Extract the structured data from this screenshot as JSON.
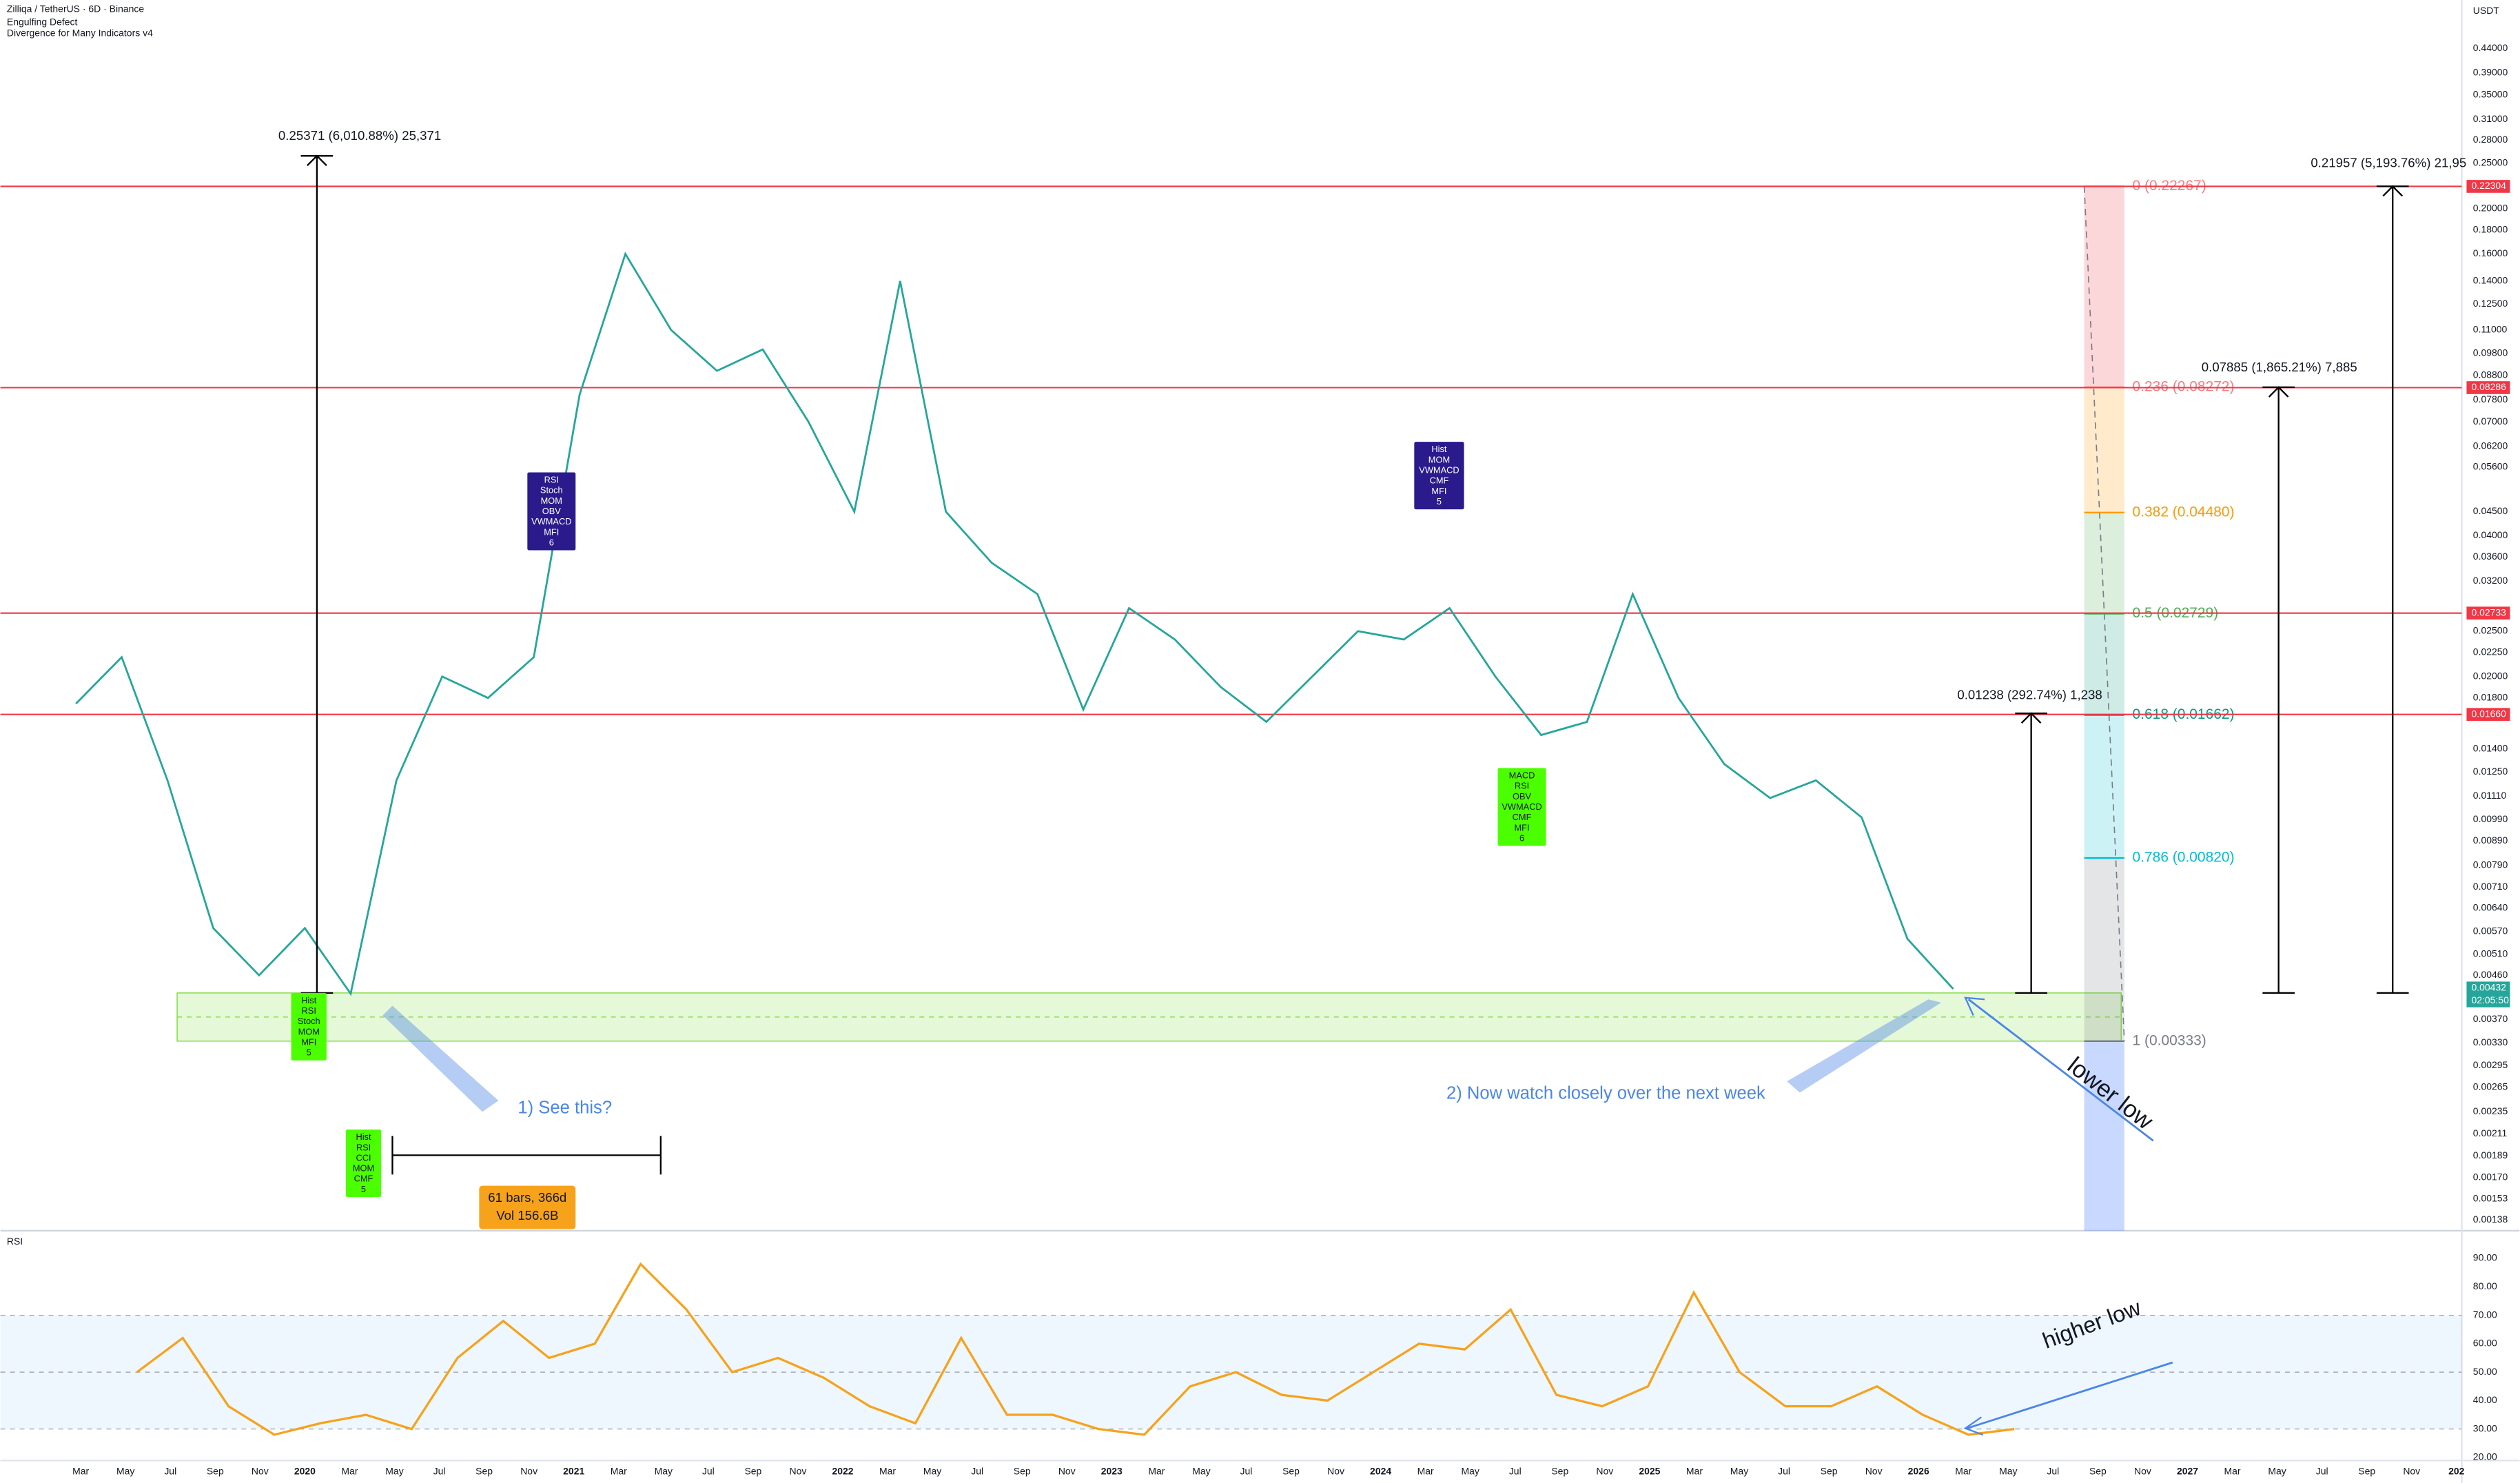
{
  "header": {
    "symbol": "Zilliqa / TetherUS · 6D · Binance",
    "indicators": [
      "Engulfing Defect",
      "Divergence for Many Indicators v4"
    ],
    "currency": "USDT"
  },
  "price_axis": {
    "labels": [
      "0.44000",
      "0.39000",
      "0.35000",
      "0.31000",
      "0.28000",
      "0.25000",
      "0.20000",
      "0.18000",
      "0.16000",
      "0.14000",
      "0.12500",
      "0.11000",
      "0.09800",
      "0.08800",
      "0.07800",
      "0.07000",
      "0.06200",
      "0.05600",
      "0.04500",
      "0.04000",
      "0.03600",
      "0.03200",
      "0.02500",
      "0.02250",
      "0.02000",
      "0.01800",
      "0.01400",
      "0.01250",
      "0.01110",
      "0.00990",
      "0.00890",
      "0.00790",
      "0.00710",
      "0.00640",
      "0.00570",
      "0.00510",
      "0.00460",
      "0.00370",
      "0.00330",
      "0.00295",
      "0.00265",
      "0.00235",
      "0.00211",
      "0.00189",
      "0.00170",
      "0.00153",
      "0.00138"
    ],
    "levels": [
      {
        "text": "0.22304",
        "color": "#f23645"
      },
      {
        "text": "0.08286",
        "color": "#f23645"
      },
      {
        "text": "0.02733",
        "color": "#f23645"
      },
      {
        "text": "0.01660",
        "color": "#f23645"
      }
    ],
    "current": {
      "text": "0.00432",
      "color": "#26a69a",
      "countdown": "02:05:50"
    }
  },
  "time_axis": [
    "Mar",
    "May",
    "Jul",
    "Sep",
    "Nov",
    "2020",
    "Mar",
    "May",
    "Jul",
    "Sep",
    "Nov",
    "2021",
    "Mar",
    "May",
    "Jul",
    "Sep",
    "Nov",
    "2022",
    "Mar",
    "May",
    "Jul",
    "Sep",
    "Nov",
    "2023",
    "Mar",
    "May",
    "Jul",
    "Sep",
    "Nov",
    "2024",
    "Mar",
    "May",
    "Jul",
    "Sep",
    "Nov",
    "2025",
    "Mar",
    "May",
    "Jul",
    "Sep",
    "Nov",
    "2026",
    "Mar",
    "May",
    "Jul",
    "Sep",
    "Nov",
    "2027",
    "Mar",
    "May",
    "Jul",
    "Sep",
    "Nov",
    "202"
  ],
  "price_series": {
    "color": "#26a69a",
    "close": [
      0.0175,
      0.022,
      0.012,
      0.0058,
      0.0046,
      0.0058,
      0.0042,
      0.012,
      0.02,
      0.018,
      0.022,
      0.08,
      0.16,
      0.11,
      0.09,
      0.1,
      0.07,
      0.045,
      0.14,
      0.045,
      0.035,
      0.03,
      0.017,
      0.028,
      0.024,
      0.019,
      0.016,
      0.02,
      0.025,
      0.024,
      0.028,
      0.02,
      0.015,
      0.016,
      0.03,
      0.018,
      0.013,
      0.011,
      0.012,
      0.01,
      0.0055,
      0.0043
    ]
  },
  "fib": [
    {
      "label": "0 (0.22267)",
      "color": "#f77c80"
    },
    {
      "label": "0.236 (0.08272)",
      "color": "#f77c80"
    },
    {
      "label": "0.382 (0.04480)",
      "color": "#ff9800"
    },
    {
      "label": "0.5 (0.02729)",
      "color": "#4caf50"
    },
    {
      "label": "0.618 (0.01662)",
      "color": "#089981"
    },
    {
      "label": "0.786 (0.00820)",
      "color": "#00bcd4"
    },
    {
      "label": "1 (0.00333)",
      "color": "#787b86"
    }
  ],
  "measures": [
    "0.25371 (6,010.88%) 25,371",
    "0.01238 (292.74%) 1,238",
    "0.07885 (1,865.21%) 7,885",
    "0.21957 (5,193.76%) 21,95"
  ],
  "range_info": [
    "61 bars, 366d",
    "Vol 156.6B"
  ],
  "signals": [
    {
      "lines": [
        "Hist",
        "RSI",
        "Stoch",
        "MOM",
        "MFI",
        "5"
      ],
      "color": "#4cff00"
    },
    {
      "lines": [
        "Hist",
        "RSI",
        "CCI",
        "MOM",
        "CMF",
        "5"
      ],
      "color": "#4cff00"
    },
    {
      "lines": [
        "RSI",
        "Stoch",
        "MOM",
        "OBV",
        "VWMACD",
        "MFI",
        "6"
      ],
      "color": "#2a1a8c"
    },
    {
      "lines": [
        "Hist",
        "MOM",
        "VWMACD",
        "CMF",
        "MFI",
        "5"
      ],
      "color": "#2a1a8c"
    },
    {
      "lines": [
        "MACD",
        "RSI",
        "OBV",
        "VWMACD",
        "CMF",
        "MFI",
        "6"
      ],
      "color": "#4cff00"
    }
  ],
  "annotations": [
    "1) See this?",
    "2) Now watch closely over the next week",
    "lower low",
    "higher low"
  ],
  "rsi": {
    "title": "RSI",
    "color": "#f7a21b",
    "axis": [
      "90.00",
      "80.00",
      "70.00",
      "60.00",
      "50.00",
      "40.00",
      "30.00",
      "20.00"
    ],
    "values": [
      50,
      62,
      38,
      28,
      32,
      35,
      30,
      55,
      68,
      55,
      60,
      88,
      72,
      50,
      55,
      48,
      38,
      32,
      62,
      35,
      35,
      30,
      28,
      45,
      50,
      42,
      40,
      50,
      60,
      58,
      72,
      42,
      38,
      45,
      78,
      50,
      38,
      38,
      45,
      35,
      28,
      30
    ]
  }
}
